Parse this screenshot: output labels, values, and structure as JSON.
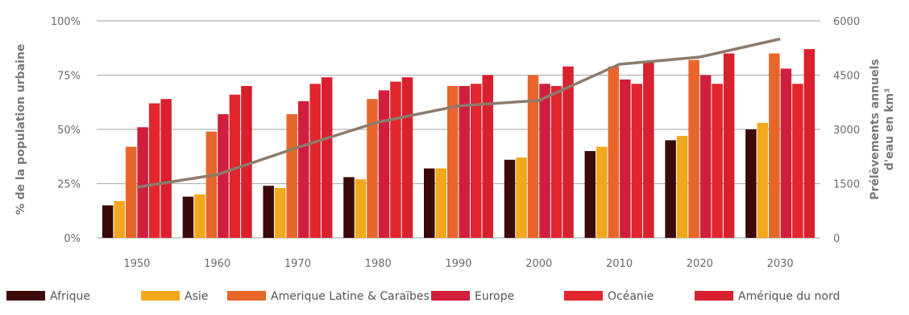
{
  "chart_data": {
    "type": "bar",
    "title": "",
    "xlabel": "",
    "ylabel": "% de la population urbaine",
    "y2label_line1": "Prélèvements annuels",
    "y2label_line2": "d'eau en km³",
    "ylim": [
      0,
      100
    ],
    "y2lim": [
      0,
      6000
    ],
    "yticks": [
      "0%",
      "25%",
      "50%",
      "75%",
      "100%"
    ],
    "y2ticks": [
      "0",
      "1500",
      "3000",
      "4500",
      "6000"
    ],
    "grid": true,
    "legend_position": "bottom",
    "categories": [
      "1950",
      "1960",
      "1970",
      "1980",
      "1990",
      "2000",
      "2010",
      "2020",
      "2030"
    ],
    "series": [
      {
        "name": "Afrique",
        "color": "#3d0a0a",
        "values": [
          15,
          19,
          24,
          28,
          32,
          36,
          40,
          45,
          50
        ]
      },
      {
        "name": "Asie",
        "color": "#f2a81d",
        "values": [
          17,
          20,
          23,
          27,
          32,
          37,
          42,
          47,
          53
        ]
      },
      {
        "name": "Amerique Latine & Caraïbes",
        "color": "#e8662a",
        "values": [
          42,
          49,
          57,
          64,
          70,
          75,
          79,
          82,
          85
        ]
      },
      {
        "name": "Europe",
        "color": "#d11e3c",
        "values": [
          51,
          57,
          63,
          68,
          70,
          71,
          73,
          75,
          78
        ]
      },
      {
        "name": "Océanie",
        "color": "#e3252d",
        "values": [
          62,
          66,
          71,
          72,
          71,
          70,
          71,
          71,
          71
        ]
      },
      {
        "name": "Amérique du nord",
        "color": "#d8202e",
        "values": [
          64,
          70,
          74,
          74,
          75,
          79,
          81,
          85,
          87
        ]
      }
    ],
    "line_series": {
      "color": "#8c7b6b",
      "x": [
        "1950",
        "1960",
        "1970",
        "1980",
        "1990",
        "2000",
        "2010",
        "2020",
        "2030"
      ],
      "values": [
        1400,
        1750,
        2500,
        3200,
        3650,
        3800,
        4800,
        5000,
        5500
      ]
    }
  }
}
